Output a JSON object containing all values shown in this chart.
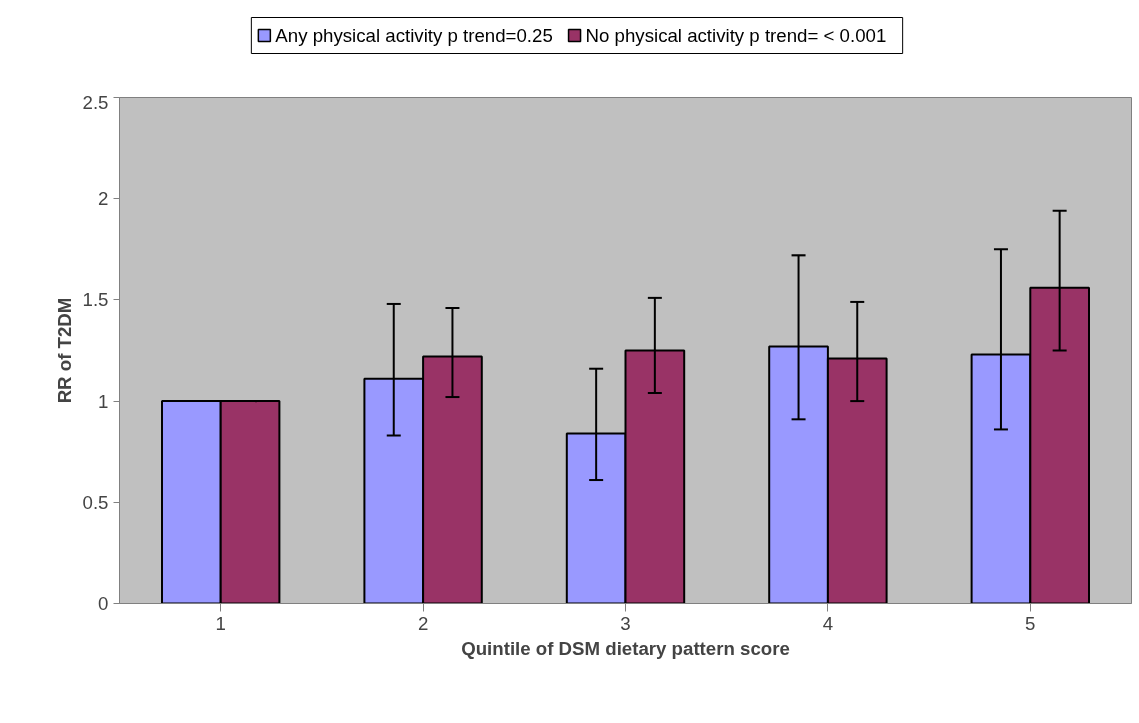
{
  "chart_data": {
    "type": "bar",
    "xlabel": "Quintile of DSM dietary pattern score",
    "ylabel": "RR of T2DM",
    "categories": [
      "1",
      "2",
      "3",
      "4",
      "5"
    ],
    "ylim": [
      0,
      2.5
    ],
    "yticks": [
      0,
      0.5,
      1,
      1.5,
      2,
      2.5
    ],
    "grid": false,
    "legend": "top",
    "series": [
      {
        "name": "Any physical activity p trend=0.25",
        "color": "#9999ff",
        "values": [
          1.0,
          1.11,
          0.84,
          1.27,
          1.23
        ],
        "errors": [
          [
            1.0,
            1.0
          ],
          [
            0.83,
            1.48
          ],
          [
            0.61,
            1.16
          ],
          [
            0.91,
            1.72
          ],
          [
            0.86,
            1.75
          ]
        ]
      },
      {
        "name": "No physical activity p trend= < 0.001",
        "color": "#993366",
        "values": [
          1.0,
          1.22,
          1.25,
          1.21,
          1.56
        ],
        "errors": [
          [
            1.0,
            1.0
          ],
          [
            1.02,
            1.46
          ],
          [
            1.04,
            1.51
          ],
          [
            1.0,
            1.49
          ],
          [
            1.25,
            1.94
          ]
        ]
      }
    ]
  }
}
